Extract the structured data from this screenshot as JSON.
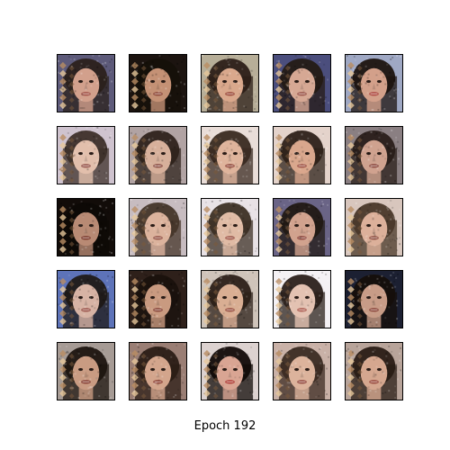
{
  "figure": {
    "caption": "Epoch 192",
    "grid": {
      "rows": 5,
      "cols": 5
    },
    "samples": [
      {
        "bg": "#5d5a7a",
        "hair": "#2b211c",
        "skin": "#d2a08c",
        "lip": "#a5574d"
      },
      {
        "bg": "#1c1410",
        "hair": "#151009",
        "skin": "#c49175",
        "lip": "#8e4a3c"
      },
      {
        "bg": "#b7ae98",
        "hair": "#2c1f18",
        "skin": "#d9a88c",
        "lip": "#9e4f40"
      },
      {
        "bg": "#4b4e7d",
        "hair": "#241b16",
        "skin": "#d6a894",
        "lip": "#9d5a50"
      },
      {
        "bg": "#9fa8c4",
        "hair": "#1e1410",
        "skin": "#d3a08a",
        "lip": "#b04e47"
      },
      {
        "bg": "#cfc3cf",
        "hair": "#3e302a",
        "skin": "#e2bfac",
        "lip": "#9b5d55"
      },
      {
        "bg": "#b1a3a3",
        "hair": "#2f231c",
        "skin": "#d7b09b",
        "lip": "#8d5148"
      },
      {
        "bg": "#e9ddd8",
        "hair": "#3a2a21",
        "skin": "#dfb49c",
        "lip": "#9a5447"
      },
      {
        "bg": "#e4d3cb",
        "hair": "#2e2119",
        "skin": "#d9a78d",
        "lip": "#a0574a"
      },
      {
        "bg": "#8a7f82",
        "hair": "#2a1f1a",
        "skin": "#cfa28f",
        "lip": "#8f4e45"
      },
      {
        "bg": "#120c09",
        "hair": "#0e0906",
        "skin": "#b88a74",
        "lip": "#7e3e32"
      },
      {
        "bg": "#c7bcc0",
        "hair": "#453529",
        "skin": "#dcb39d",
        "lip": "#985a4e"
      },
      {
        "bg": "#e8e2e6",
        "hair": "#3d3025",
        "skin": "#e0bba5",
        "lip": "#a45e51"
      },
      {
        "bg": "#6a6486",
        "hair": "#221914",
        "skin": "#d1a28e",
        "lip": "#954f46"
      },
      {
        "bg": "#d8c6bd",
        "hair": "#4a3829",
        "skin": "#dcb09a",
        "lip": "#96584b"
      },
      {
        "bg": "#5d73b9",
        "hair": "#1f1a17",
        "skin": "#d7b3a4",
        "lip": "#9e5950"
      },
      {
        "bg": "#2e201a",
        "hair": "#1a120d",
        "skin": "#c99a80",
        "lip": "#8b4a3e"
      },
      {
        "bg": "#cfc4ba",
        "hair": "#2c2018",
        "skin": "#d9ae93",
        "lip": "#9c5547"
      },
      {
        "bg": "#f4f1f4",
        "hair": "#2b201b",
        "skin": "#e3c2b2",
        "lip": "#b06358"
      },
      {
        "bg": "#1c2032",
        "hair": "#150f0b",
        "skin": "#c89c87",
        "lip": "#8e4b40"
      },
      {
        "bg": "#a69b95",
        "hair": "#1d1510",
        "skin": "#c99b82",
        "lip": "#8a463b"
      },
      {
        "bg": "#9a7e74",
        "hair": "#2b1d16",
        "skin": "#d3a58c",
        "lip": "#92483c"
      },
      {
        "bg": "#dcd2d0",
        "hair": "#120b08",
        "skin": "#d9a593",
        "lip": "#b2433d"
      },
      {
        "bg": "#c9b1a7",
        "hair": "#3c2c23",
        "skin": "#dcb39c",
        "lip": "#985249"
      },
      {
        "bg": "#b8a49a",
        "hair": "#2a1d16",
        "skin": "#d5a78f",
        "lip": "#9b4e42"
      }
    ]
  }
}
